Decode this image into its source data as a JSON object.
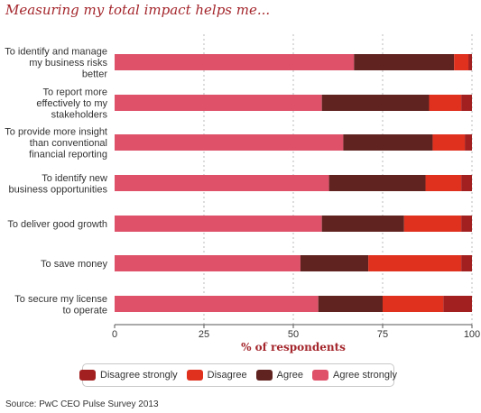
{
  "title": "Measuring my total impact helps me...",
  "source": "Source: PwC CEO Pulse Survey 2013",
  "chart_data": {
    "type": "bar",
    "orientation": "horizontal",
    "stacked": true,
    "title": "Measuring my total impact helps me...",
    "xlabel": "% of respondents",
    "ylabel": "",
    "xlim": [
      0,
      100
    ],
    "xticks": [
      "0",
      "25",
      "50",
      "75",
      "100"
    ],
    "grid": "vertical dotted",
    "legend_position": "bottom",
    "categories": [
      [
        "To identify and manage",
        "my business risks",
        "better"
      ],
      [
        "To report more",
        "effectively to my",
        "stakeholders"
      ],
      [
        "To provide more insight",
        "than conventional",
        "financial reporting"
      ],
      [
        "To identify new",
        "business opportunities"
      ],
      [
        "To deliver good growth"
      ],
      [
        "To save money"
      ],
      [
        "To secure my license",
        "to operate"
      ]
    ],
    "series": [
      {
        "name": "Agree strongly",
        "color": "#de5169",
        "values": [
          67,
          58,
          64,
          60,
          58,
          52,
          57
        ]
      },
      {
        "name": "Agree",
        "color": "#602320",
        "values": [
          28,
          30,
          25,
          27,
          23,
          19,
          18
        ]
      },
      {
        "name": "Disagree",
        "color": "#e0301e",
        "values": [
          4,
          9,
          9,
          10,
          16,
          26,
          17
        ]
      },
      {
        "name": "Disagree strongly",
        "color": "#a32020",
        "values": [
          1,
          3,
          2,
          3,
          3,
          3,
          8
        ]
      }
    ],
    "legend_order": [
      "Disagree strongly",
      "Disagree",
      "Agree",
      "Agree strongly"
    ]
  }
}
